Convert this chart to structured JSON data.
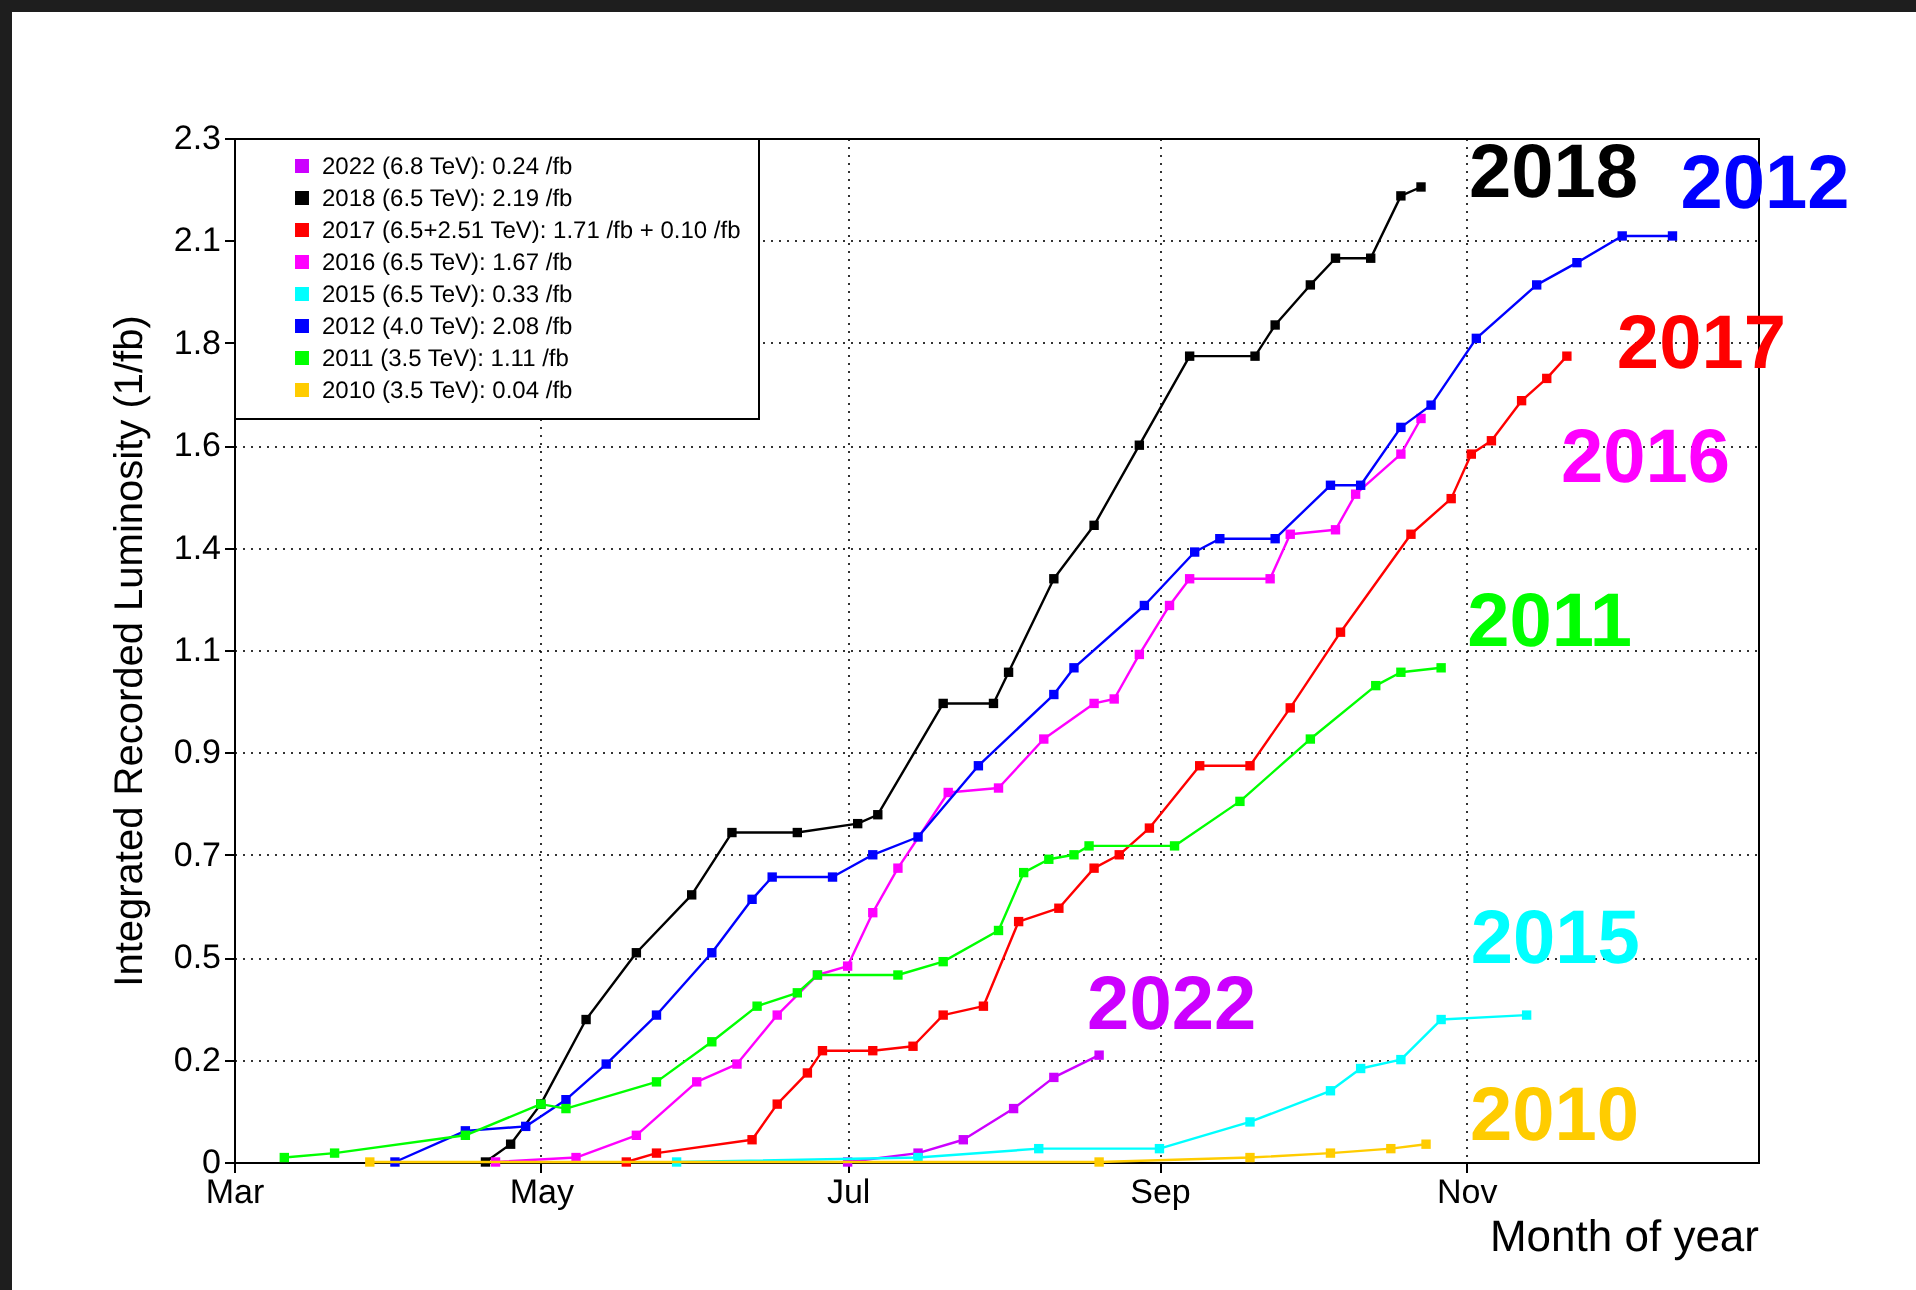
{
  "chart_data": {
    "type": "line",
    "xlabel": "Month of year",
    "ylabel": "Integrated Recorded Luminosity (1/fb)",
    "xlim": [
      "--03-01",
      "--12-29"
    ],
    "xticks": [
      {
        "value": "--03-01",
        "label": "Mar"
      },
      {
        "value": "--05-01",
        "label": "May"
      },
      {
        "value": "--07-01",
        "label": "Jul"
      },
      {
        "value": "--09-01",
        "label": "Sep"
      },
      {
        "value": "--11-01",
        "label": "Nov"
      }
    ],
    "ylim": [
      0,
      2.3
    ],
    "yticks": [
      {
        "value": 0,
        "label": "0"
      },
      {
        "value": 0.23,
        "label": "0.2"
      },
      {
        "value": 0.46,
        "label": "0.5"
      },
      {
        "value": 0.69,
        "label": "0.7"
      },
      {
        "value": 0.92,
        "label": "0.9"
      },
      {
        "value": 1.15,
        "label": "1.1"
      },
      {
        "value": 1.38,
        "label": "1.4"
      },
      {
        "value": 1.61,
        "label": "1.6"
      },
      {
        "value": 1.84,
        "label": "1.8"
      },
      {
        "value": 2.07,
        "label": "2.1"
      },
      {
        "value": 2.3,
        "label": "2.3"
      }
    ],
    "grid": true,
    "legend": "top left",
    "marker": "square",
    "line_style": "solid",
    "series": [
      {
        "name": "2022 (6.8 TeV): 0.24 /fb",
        "color": "#cc00ff",
        "x": [
          "--07-01",
          "--07-15",
          "--07-24",
          "--08-03",
          "--08-11",
          "--08-20"
        ],
        "values": [
          0,
          0.02,
          0.05,
          0.12,
          0.19,
          0.24
        ]
      },
      {
        "name": "2018 (6.5 TeV): 2.19 /fb",
        "color": "#000000",
        "x": [
          "--04-20",
          "--04-25",
          "--05-01",
          "--05-10",
          "--05-20",
          "--05-31",
          "--06-08",
          "--06-21",
          "--07-03",
          "--07-07",
          "--07-20",
          "--07-30",
          "--08-02",
          "--08-11",
          "--08-19",
          "--08-28",
          "--09-07",
          "--09-20",
          "--09-24",
          "--10-01",
          "--10-06",
          "--10-13",
          "--10-19",
          "--10-23"
        ],
        "values": [
          0,
          0.04,
          0.13,
          0.32,
          0.47,
          0.6,
          0.74,
          0.74,
          0.76,
          0.78,
          1.03,
          1.03,
          1.1,
          1.31,
          1.43,
          1.61,
          1.81,
          1.81,
          1.88,
          1.97,
          2.03,
          2.03,
          2.17,
          2.19
        ]
      },
      {
        "name": "2017 (6.5+2.51 TeV): 1.71 /fb + 0.10 /fb",
        "color": "#ff0000",
        "x": [
          "--05-18",
          "--05-24",
          "--06-12",
          "--06-17",
          "--06-23",
          "--06-26",
          "--07-06",
          "--07-14",
          "--07-20",
          "--07-28",
          "--08-04",
          "--08-12",
          "--08-19",
          "--08-24",
          "--08-30",
          "--09-09",
          "--09-19",
          "--09-27",
          "--10-07",
          "--10-21",
          "--10-29",
          "--11-02",
          "--11-06",
          "--11-12",
          "--11-17",
          "--11-21"
        ],
        "values": [
          0,
          0.02,
          0.05,
          0.13,
          0.2,
          0.25,
          0.25,
          0.26,
          0.33,
          0.35,
          0.54,
          0.57,
          0.66,
          0.69,
          0.75,
          0.89,
          0.89,
          1.02,
          1.19,
          1.41,
          1.49,
          1.59,
          1.62,
          1.71,
          1.76,
          1.81
        ]
      },
      {
        "name": "2016 (6.5 TeV): 1.67 /fb",
        "color": "#ff00ff",
        "x": [
          "--04-22",
          "--05-08",
          "--05-20",
          "--06-01",
          "--06-09",
          "--06-17",
          "--06-25",
          "--07-01",
          "--07-06",
          "--07-11",
          "--07-21",
          "--07-31",
          "--08-09",
          "--08-19",
          "--08-23",
          "--08-28",
          "--09-03",
          "--09-07",
          "--09-23",
          "--09-27",
          "--10-06",
          "--10-10",
          "--10-19",
          "--10-23"
        ],
        "values": [
          0,
          0.01,
          0.06,
          0.18,
          0.22,
          0.33,
          0.42,
          0.44,
          0.56,
          0.66,
          0.83,
          0.84,
          0.95,
          1.03,
          1.04,
          1.14,
          1.25,
          1.31,
          1.31,
          1.41,
          1.42,
          1.5,
          1.59,
          1.67
        ]
      },
      {
        "name": "2015 (6.5 TeV): 0.33 /fb",
        "color": "#00ffff",
        "x": [
          "--05-28",
          "--07-15",
          "--08-08",
          "--09-01",
          "--09-19",
          "--10-05",
          "--10-11",
          "--10-19",
          "--10-27",
          "--11-13"
        ],
        "values": [
          0,
          0.01,
          0.03,
          0.03,
          0.09,
          0.16,
          0.21,
          0.23,
          0.32,
          0.33
        ]
      },
      {
        "name": "2012 (4.0 TeV): 2.08 /fb",
        "color": "#0000ff",
        "x": [
          "--04-02",
          "--04-16",
          "--04-28",
          "--05-06",
          "--05-14",
          "--05-24",
          "--06-04",
          "--06-12",
          "--06-16",
          "--06-28",
          "--07-06",
          "--07-15",
          "--07-27",
          "--08-11",
          "--08-15",
          "--08-29",
          "--09-08",
          "--09-13",
          "--09-24",
          "--10-05",
          "--10-11",
          "--10-19",
          "--10-25",
          "--11-03",
          "--11-15",
          "--11-23",
          "--12-02",
          "--12-12"
        ],
        "values": [
          0,
          0.07,
          0.08,
          0.14,
          0.22,
          0.33,
          0.47,
          0.59,
          0.64,
          0.64,
          0.69,
          0.73,
          0.89,
          1.05,
          1.11,
          1.25,
          1.37,
          1.4,
          1.4,
          1.52,
          1.52,
          1.65,
          1.7,
          1.85,
          1.97,
          2.02,
          2.08,
          2.08
        ]
      },
      {
        "name": "2011 (3.5 TeV): 1.11 /fb",
        "color": "#00ff00",
        "x": [
          "--03-11",
          "--03-21",
          "--04-16",
          "--05-01",
          "--05-06",
          "--05-24",
          "--06-04",
          "--06-13",
          "--06-21",
          "--06-25",
          "--07-11",
          "--07-20",
          "--07-31",
          "--08-05",
          "--08-10",
          "--08-15",
          "--08-18",
          "--09-04",
          "--09-17",
          "--10-01",
          "--10-14",
          "--10-19",
          "--10-27"
        ],
        "values": [
          0.01,
          0.02,
          0.06,
          0.13,
          0.12,
          0.18,
          0.27,
          0.35,
          0.38,
          0.42,
          0.42,
          0.45,
          0.52,
          0.65,
          0.68,
          0.69,
          0.71,
          0.71,
          0.81,
          0.95,
          1.07,
          1.1,
          1.11
        ]
      },
      {
        "name": "2010 (3.5 TeV): 0.04 /fb",
        "color": "#ffcc00",
        "x": [
          "--03-28",
          "--08-20",
          "--09-19",
          "--10-05",
          "--10-17",
          "--10-24"
        ],
        "values": [
          0,
          0,
          0.01,
          0.02,
          0.03,
          0.04
        ]
      }
    ],
    "annotations": [
      "2022",
      "2018",
      "2017",
      "2016",
      "2015",
      "2012",
      "2011",
      "2010"
    ]
  }
}
